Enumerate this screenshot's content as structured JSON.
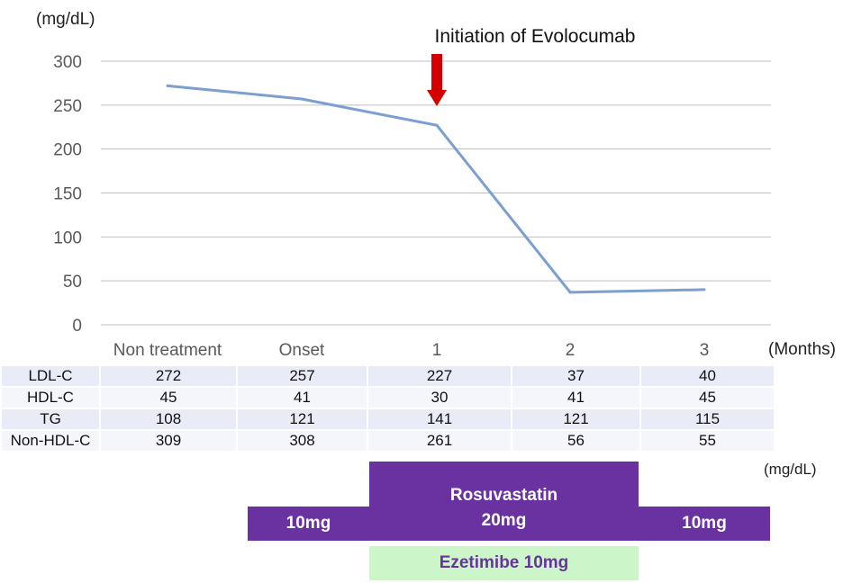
{
  "chart_data": {
    "type": "line",
    "unit_label": "(mg/dL)",
    "annotation": "Initiation of Evolocumab",
    "annotation_at": "1",
    "x_unit_label": "(Months)",
    "categories": [
      "Non treatment",
      "Onset",
      "1",
      "2",
      "3"
    ],
    "series": [
      {
        "values": [
          272,
          257,
          227,
          37,
          40
        ]
      }
    ],
    "ylim": [
      0,
      300
    ],
    "yticks": [
      0,
      50,
      100,
      150,
      200,
      250,
      300
    ],
    "grid": true,
    "line_color": "#7a9fd0",
    "arrow_color": "#d40000"
  },
  "lab_table": {
    "unit_label": "(mg/dL)",
    "rows": [
      {
        "label": "LDL-C",
        "values": [
          "272",
          "257",
          "227",
          "37",
          "40"
        ]
      },
      {
        "label": "HDL-C",
        "values": [
          "45",
          "41",
          "30",
          "41",
          "45"
        ]
      },
      {
        "label": "TG",
        "values": [
          "108",
          "121",
          "141",
          "121",
          "115"
        ]
      },
      {
        "label": "Non-HDL-C",
        "values": [
          "309",
          "308",
          "261",
          "56",
          "55"
        ]
      }
    ]
  },
  "treatment": {
    "rosuvastatin_name": "Rosuvastatin",
    "dose_left": "10mg",
    "dose_middle": "20mg",
    "dose_right": "10mg",
    "ezetimibe": "Ezetimibe 10mg",
    "rosuvastatin_color": "#6a32a0",
    "ezetimibe_color": "#ccf5c9"
  }
}
